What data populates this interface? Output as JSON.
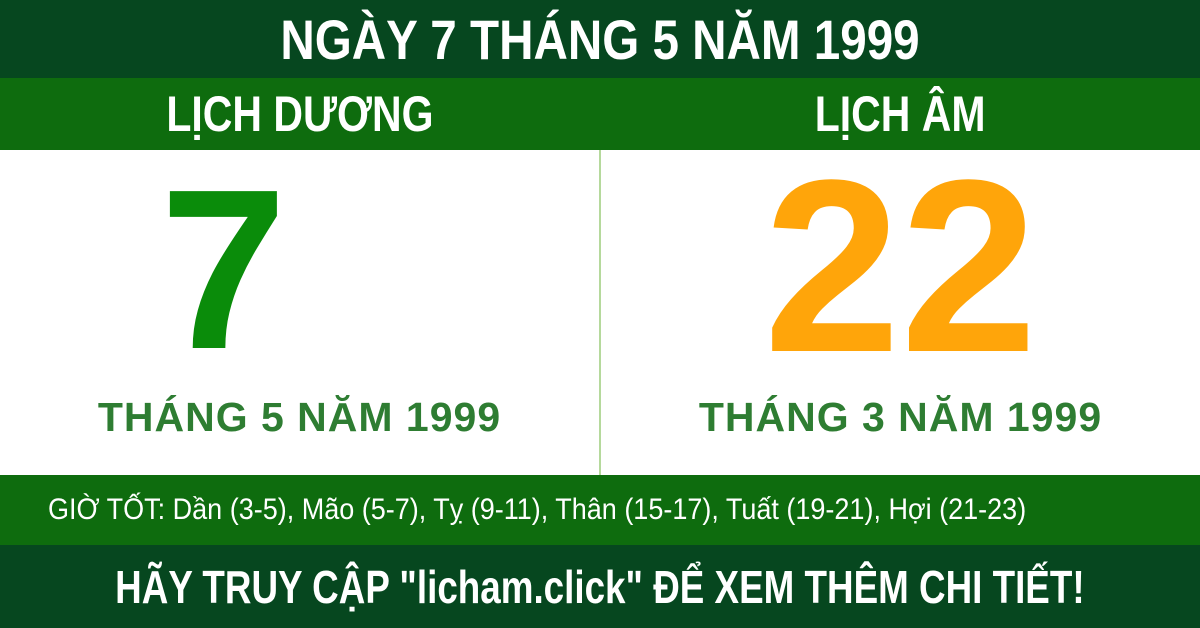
{
  "header": {
    "title": "NGÀY 7 THÁNG 5 NĂM 1999"
  },
  "tabs": {
    "solar_label": "LỊCH DƯƠNG",
    "lunar_label": "LỊCH ÂM"
  },
  "solar": {
    "day": "7",
    "month_year": "THÁNG 5 NĂM 1999"
  },
  "lunar": {
    "day": "22",
    "month_year": "THÁNG 3 NĂM 1999"
  },
  "good_hours": {
    "text": "GIỜ TỐT: Dần (3-5), Mão (5-7), Tỵ (9-11), Thân (15-17), Tuất (19-21), Hợi (21-23)"
  },
  "footer": {
    "cta": "HÃY TRUY CẬP \"licham.click\" ĐỂ XEM THÊM CHI TIẾT!"
  },
  "colors": {
    "header_dark_green": "#06471f",
    "band_medium_green": "#0e6c0e",
    "solar_day_green": "#0a8c0a",
    "lunar_day_orange": "#ffa50a",
    "month_label_green": "#2e7d32",
    "divider_light_green": "#b5d99c",
    "text_white": "#ffffff"
  }
}
